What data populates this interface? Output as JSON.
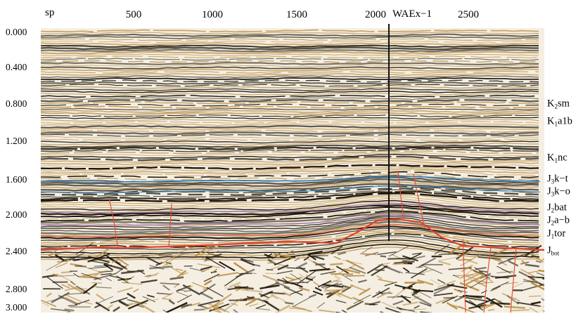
{
  "header": {
    "sp_label": "sp",
    "sp_ticks": [
      {
        "label": "500",
        "value": 500
      },
      {
        "label": "1000",
        "value": 1000
      },
      {
        "label": "1500",
        "value": 1500
      },
      {
        "label": "2000",
        "value": 2000
      },
      {
        "label": "2500",
        "value": 2500
      }
    ]
  },
  "well": {
    "name": "WAEx−1",
    "sp": 2070
  },
  "time_axis": {
    "ticks": [
      {
        "label": "0.000",
        "value": 0.0
      },
      {
        "label": "0.400",
        "value": 0.4
      },
      {
        "label": "0.800",
        "value": 0.8
      },
      {
        "label": "1.200",
        "value": 1.2
      },
      {
        "label": "1.600",
        "value": 1.6
      },
      {
        "label": "2.000",
        "value": 2.0
      },
      {
        "label": "2.400",
        "value": 2.4
      },
      {
        "label": "2.800",
        "value": 2.8
      },
      {
        "label": "3.000",
        "value": 3.0
      }
    ]
  },
  "horizons": [
    {
      "sym": "K",
      "sub": "2",
      "rest": "sm",
      "time": 0.85
    },
    {
      "sym": "K",
      "sub": "1",
      "rest": "a1b",
      "time": 1.08
    },
    {
      "sym": "K",
      "sub": "1",
      "rest": "nc",
      "time": 1.4
    },
    {
      "sym": "J",
      "sub": "3",
      "rest": "k−t",
      "time": 1.66
    },
    {
      "sym": "J",
      "sub": "3",
      "rest": "k−o",
      "time": 1.82
    },
    {
      "sym": "J",
      "sub": "2",
      "rest": "bat",
      "time": 2.0
    },
    {
      "sym": "J",
      "sub": "2",
      "rest": "a−b",
      "time": 2.13
    },
    {
      "sym": "J",
      "sub": "1",
      "rest": "tor",
      "time": 2.29
    },
    {
      "sym": "J",
      "sub": "bot",
      "rest": "",
      "time": 2.48
    }
  ],
  "colors": {
    "trace_dark": "#1a1206",
    "trace_tan": "#b8893f",
    "background": "#f4efe2",
    "horizon_blue": "#2f86c9",
    "horizon_purple": "#8a5bc0",
    "horizon_red": "#e2402a",
    "fault_red": "#e0503a"
  }
}
